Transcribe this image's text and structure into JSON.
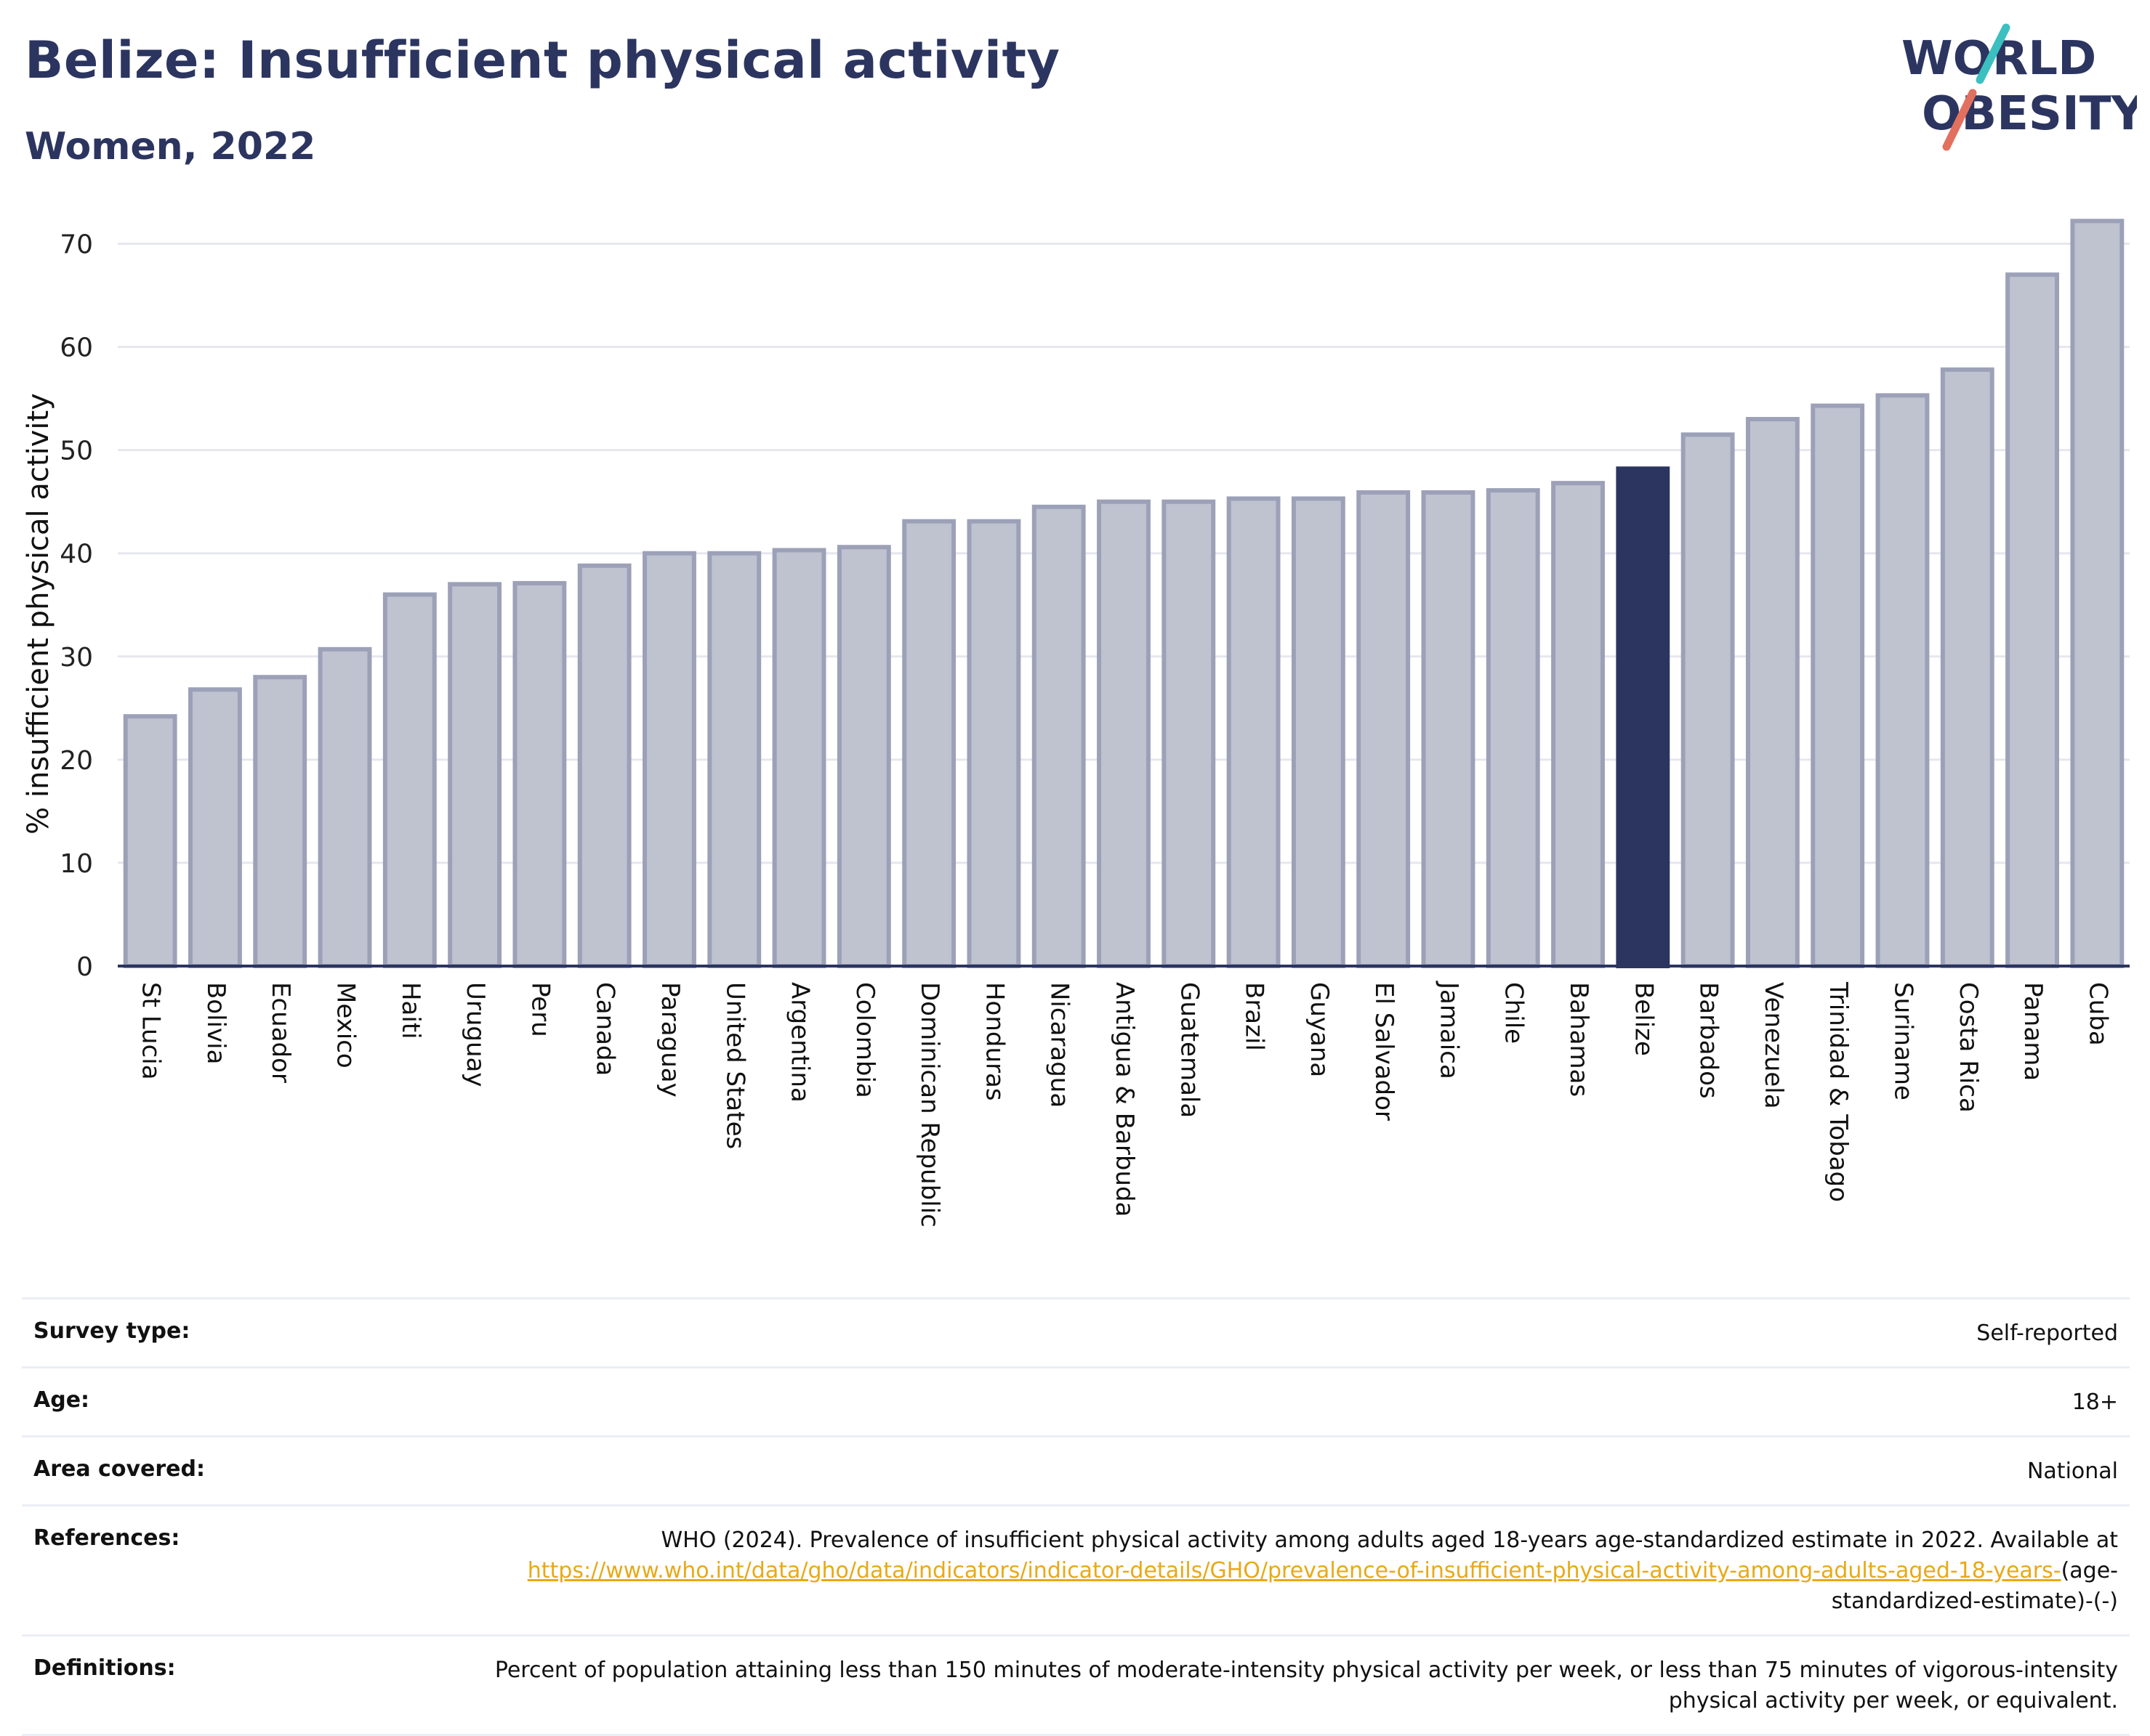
{
  "header": {
    "title": "Belize: Insufficient physical activity",
    "subtitle": "Women, 2022",
    "logo_line1": "WORLD",
    "logo_line2": "OBESITY"
  },
  "colors": {
    "title": "#2b3560",
    "bar": "#bfc2cf",
    "bar_border": "#9ca1b8",
    "highlight": "#2b3560",
    "link": "#e8a917",
    "logo_teal": "#3bbfbf",
    "logo_coral": "#e2705e"
  },
  "chart_data": {
    "type": "bar",
    "title": "Belize: Insufficient physical activity",
    "subtitle": "Women, 2022",
    "xlabel": "",
    "ylabel": "% insufficient physical activity",
    "ylim": [
      0,
      72.5
    ],
    "yticks": [
      0,
      10,
      20,
      30,
      40,
      50,
      60,
      70
    ],
    "grid": true,
    "highlight": "Belize",
    "categories": [
      "St Lucia",
      "Bolivia",
      "Ecuador",
      "Mexico",
      "Haiti",
      "Uruguay",
      "Peru",
      "Canada",
      "Paraguay",
      "United States",
      "Argentina",
      "Colombia",
      "Dominican Republic",
      "Honduras",
      "Nicaragua",
      "Antigua & Barbuda",
      "Guatemala",
      "Brazil",
      "Guyana",
      "El Salvador",
      "Jamaica",
      "Chile",
      "Bahamas",
      "Belize",
      "Barbados",
      "Venezuela",
      "Trinidad & Tobago",
      "Suriname",
      "Costa Rica",
      "Panama",
      "Cuba"
    ],
    "values": [
      24.2,
      26.8,
      28.0,
      30.7,
      36.0,
      37.0,
      37.1,
      38.8,
      40.0,
      40.0,
      40.3,
      40.6,
      43.1,
      43.1,
      44.5,
      45.0,
      45.0,
      45.3,
      45.3,
      45.9,
      45.9,
      46.1,
      46.8,
      48.2,
      51.5,
      53.0,
      54.3,
      55.3,
      57.8,
      67.0,
      72.2
    ]
  },
  "meta": {
    "survey_type": {
      "label": "Survey type:",
      "value": "Self-reported"
    },
    "age": {
      "label": "Age:",
      "value": "18+"
    },
    "area": {
      "label": "Area covered:",
      "value": "National"
    },
    "references": {
      "label": "References:",
      "text": "WHO (2024). Prevalence of insufficient physical activity among adults aged 18-years age-standardized estimate in 2022. Available at",
      "link": "https://www.who.int/data/gho/data/indicators/indicator-details/GHO/prevalence-of-insufficient-physical-activity-among-adults-aged-18-years-",
      "suffix": "(age-standardized-estimate)-(-)"
    },
    "definitions": {
      "label": "Definitions:",
      "value": "Percent of population attaining less than 150 minutes of moderate-intensity physical activity per week, or less than 75 minutes of vigorous-intensity physical activity per week, or equivalent."
    }
  }
}
